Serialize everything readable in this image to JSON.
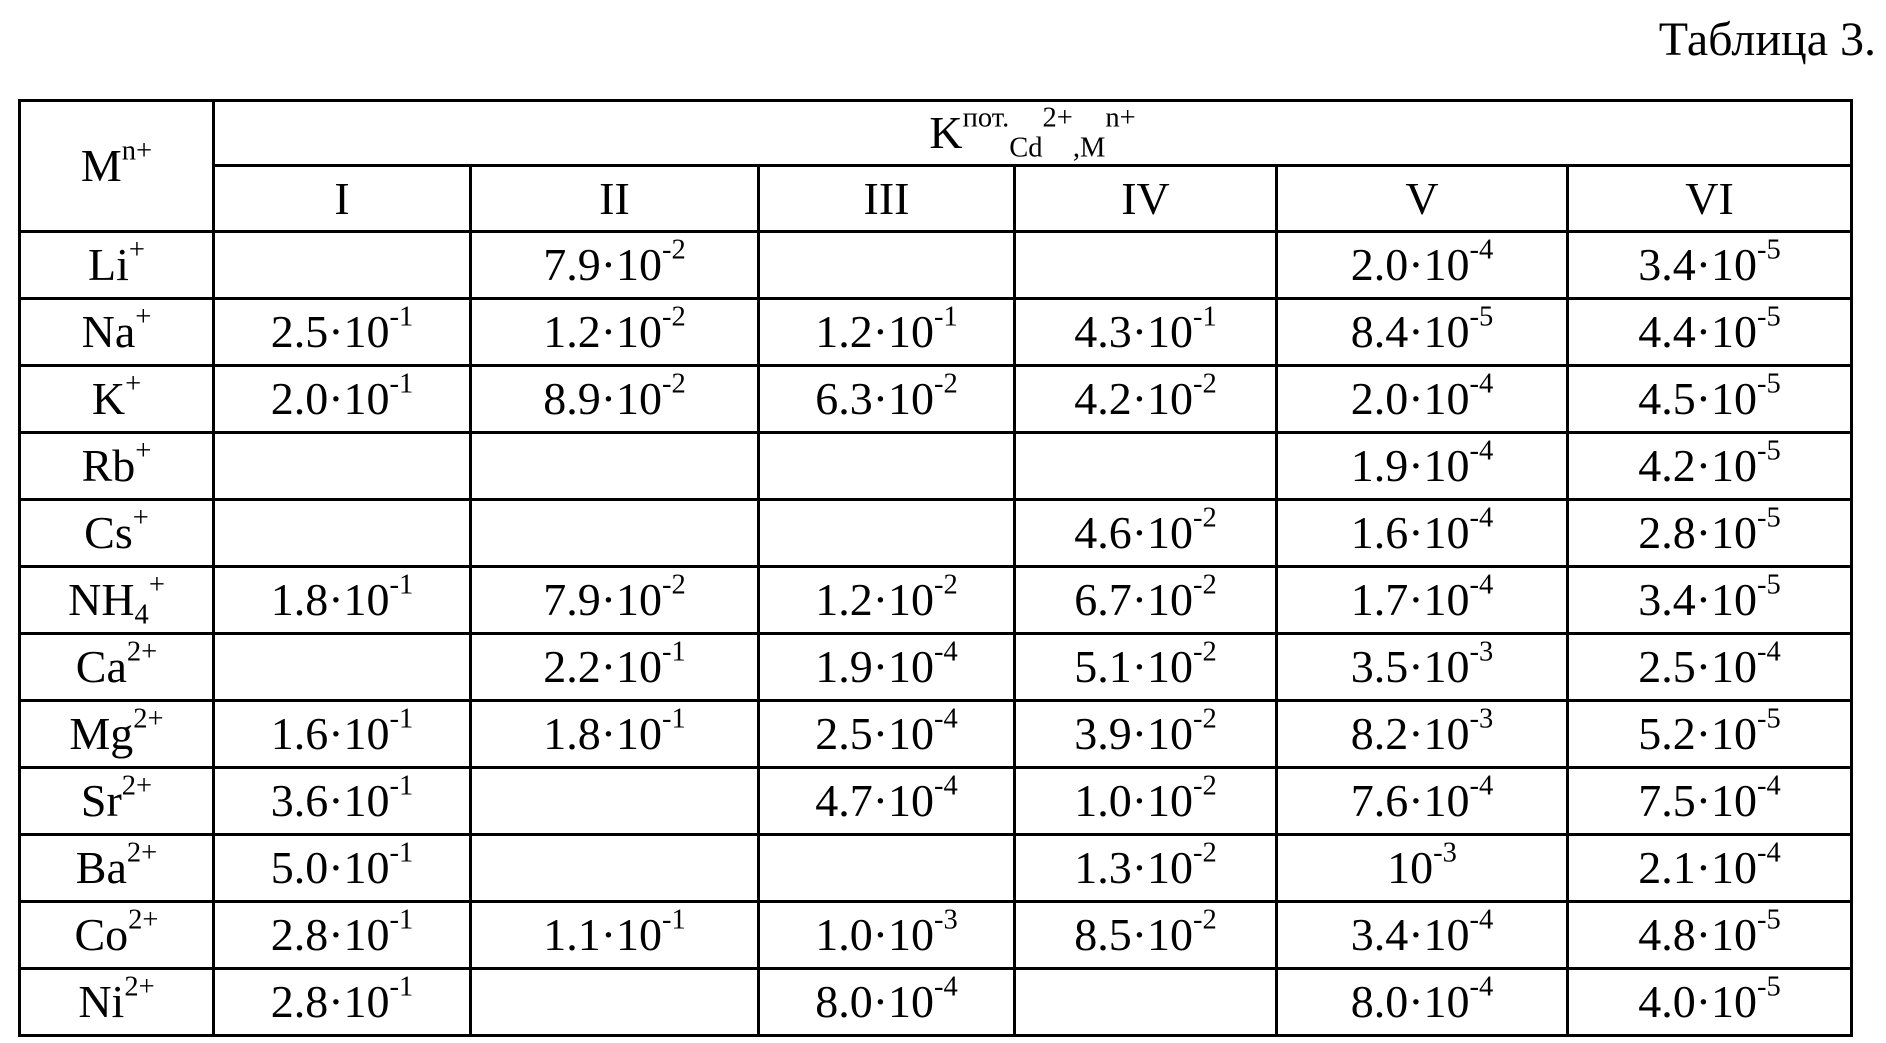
{
  "caption": "Таблица 3.",
  "table": {
    "corner": {
      "base": "M",
      "sup": "n+"
    },
    "group_header": [
      {
        "text": "K"
      },
      {
        "sup": "пот."
      },
      {
        "sub": "Cd"
      },
      {
        "sup": "2+"
      },
      {
        "sub": ",M"
      },
      {
        "sup": "n+"
      }
    ],
    "columns": [
      "I",
      "II",
      "III",
      "IV",
      "V",
      "VI"
    ],
    "rows": [
      {
        "ion": {
          "base": "Li",
          "sup": "+"
        },
        "cells": [
          null,
          [
            "7.9·10",
            "-2"
          ],
          null,
          null,
          [
            "2.0·10",
            "-4"
          ],
          [
            "3.4·10",
            "-5"
          ]
        ]
      },
      {
        "ion": {
          "base": "Na",
          "sup": "+"
        },
        "cells": [
          [
            "2.5·10",
            "-1"
          ],
          [
            "1.2·10",
            "-2"
          ],
          [
            "1.2·10",
            "-1"
          ],
          [
            "4.3·10",
            "-1"
          ],
          [
            "8.4·10",
            "-5"
          ],
          [
            "4.4·10",
            "-5"
          ]
        ]
      },
      {
        "ion": {
          "base": "K",
          "sup": "+"
        },
        "cells": [
          [
            "2.0·10",
            "-1"
          ],
          [
            "8.9·10",
            "-2"
          ],
          [
            "6.3·10",
            "-2"
          ],
          [
            "4.2·10",
            "-2"
          ],
          [
            "2.0·10",
            "-4"
          ],
          [
            "4.5·10",
            "-5"
          ]
        ]
      },
      {
        "ion": {
          "base": "Rb",
          "sup": "+"
        },
        "cells": [
          null,
          null,
          null,
          null,
          [
            "1.9·10",
            "-4"
          ],
          [
            "4.2·10",
            "-5"
          ]
        ]
      },
      {
        "ion": {
          "base": "Cs",
          "sup": "+"
        },
        "cells": [
          null,
          null,
          null,
          [
            "4.6·10",
            "-2"
          ],
          [
            "1.6·10",
            "-4"
          ],
          [
            "2.8·10",
            "-5"
          ]
        ]
      },
      {
        "ion": {
          "base": "NH",
          "sub": "4",
          "sup": "+"
        },
        "cells": [
          [
            "1.8·10",
            "-1"
          ],
          [
            "7.9·10",
            "-2"
          ],
          [
            "1.2·10",
            "-2"
          ],
          [
            "6.7·10",
            "-2"
          ],
          [
            "1.7·10",
            "-4"
          ],
          [
            "3.4·10",
            "-5"
          ]
        ]
      },
      {
        "ion": {
          "base": "Ca",
          "sup": "2+"
        },
        "cells": [
          null,
          [
            "2.2·10",
            "-1"
          ],
          [
            "1.9·10",
            "-4"
          ],
          [
            "5.1·10",
            "-2"
          ],
          [
            "3.5·10",
            "-3"
          ],
          [
            "2.5·10",
            "-4"
          ]
        ]
      },
      {
        "ion": {
          "base": "Mg",
          "sup": "2+"
        },
        "cells": [
          [
            "1.6·10",
            "-1"
          ],
          [
            "1.8·10",
            "-1"
          ],
          [
            "2.5·10",
            "-4"
          ],
          [
            "3.9·10",
            "-2"
          ],
          [
            "8.2·10",
            "-3"
          ],
          [
            "5.2·10",
            "-5"
          ]
        ]
      },
      {
        "ion": {
          "base": "Sr",
          "sup": "2+"
        },
        "cells": [
          [
            "3.6·10",
            "-1"
          ],
          null,
          [
            "4.7·10",
            "-4"
          ],
          [
            "1.0·10",
            "-2"
          ],
          [
            "7.6·10",
            "-4"
          ],
          [
            "7.5·10",
            "-4"
          ]
        ]
      },
      {
        "ion": {
          "base": "Ba",
          "sup": "2+"
        },
        "cells": [
          [
            "5.0·10",
            "-1"
          ],
          null,
          null,
          [
            "1.3·10",
            "-2"
          ],
          [
            "10",
            "-3"
          ],
          [
            "2.1·10",
            "-4"
          ]
        ]
      },
      {
        "ion": {
          "base": "Co",
          "sup": "2+"
        },
        "cells": [
          [
            "2.8·10",
            "-1"
          ],
          [
            "1.1·10",
            "-1"
          ],
          [
            "1.0·10",
            "-3"
          ],
          [
            "8.5·10",
            "-2"
          ],
          [
            "3.4·10",
            "-4"
          ],
          [
            "4.8·10",
            "-5"
          ]
        ]
      },
      {
        "ion": {
          "base": "Ni",
          "sup": "2+"
        },
        "cells": [
          [
            "2.8·10",
            "-1"
          ],
          null,
          [
            "8.0·10",
            "-4"
          ],
          null,
          [
            "8.0·10",
            "-4"
          ],
          [
            "4.0·10",
            "-5"
          ]
        ]
      }
    ]
  }
}
